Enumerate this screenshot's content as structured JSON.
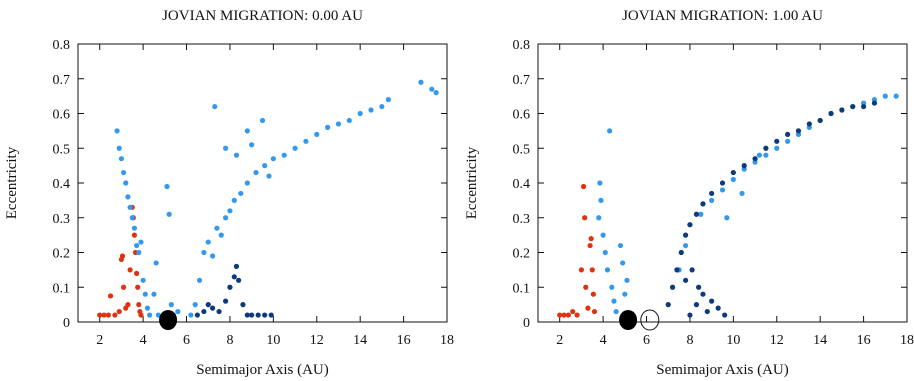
{
  "chart_data": [
    {
      "type": "scatter",
      "title": "JOVIAN MIGRATION: 0.00 AU",
      "xlabel": "Semimajor Axis (AU)",
      "ylabel": "Eccentricity",
      "xlim": [
        1,
        18
      ],
      "ylim": [
        0,
        0.8
      ],
      "xticks": [
        2,
        4,
        6,
        8,
        10,
        12,
        14,
        16,
        18
      ],
      "yticks": [
        0,
        0.1,
        0.2,
        0.3,
        0.4,
        0.5,
        0.6,
        0.7,
        0.8
      ],
      "grid": false,
      "colors": {
        "red": "#dd3311",
        "light": "#3399ee",
        "dark": "#0d3a7a",
        "planet": "#000000"
      },
      "series": [
        {
          "color": "red",
          "points": [
            [
              2.0,
              0.02
            ],
            [
              2.2,
              0.02
            ],
            [
              2.4,
              0.02
            ],
            [
              2.5,
              0.075
            ],
            [
              2.7,
              0.02
            ],
            [
              2.9,
              0.03
            ],
            [
              3.0,
              0.18
            ],
            [
              3.05,
              0.19
            ],
            [
              3.1,
              0.1
            ],
            [
              3.2,
              0.04
            ],
            [
              3.3,
              0.05
            ],
            [
              3.4,
              0.15
            ],
            [
              3.5,
              0.33
            ],
            [
              3.55,
              0.3
            ],
            [
              3.6,
              0.25
            ],
            [
              3.65,
              0.2
            ],
            [
              3.7,
              0.14
            ],
            [
              3.75,
              0.1
            ],
            [
              3.8,
              0.05
            ],
            [
              3.85,
              0.03
            ],
            [
              3.9,
              0.02
            ]
          ]
        },
        {
          "color": "light",
          "points": [
            [
              2.8,
              0.55
            ],
            [
              2.9,
              0.5
            ],
            [
              3.0,
              0.47
            ],
            [
              3.1,
              0.43
            ],
            [
              3.2,
              0.4
            ],
            [
              3.3,
              0.36
            ],
            [
              3.4,
              0.33
            ],
            [
              3.5,
              0.3
            ],
            [
              3.6,
              0.27
            ],
            [
              3.7,
              0.22
            ],
            [
              3.8,
              0.2
            ],
            [
              3.9,
              0.23
            ],
            [
              4.0,
              0.12
            ],
            [
              4.1,
              0.08
            ],
            [
              4.2,
              0.04
            ],
            [
              4.3,
              0.02
            ],
            [
              4.5,
              0.08
            ],
            [
              4.6,
              0.17
            ],
            [
              4.7,
              0.02
            ],
            [
              5.1,
              0.39
            ],
            [
              5.2,
              0.31
            ],
            [
              5.3,
              0.05
            ],
            [
              5.4,
              0.02
            ],
            [
              5.6,
              0.03
            ],
            [
              6.2,
              0.02
            ],
            [
              6.4,
              0.05
            ],
            [
              6.6,
              0.12
            ],
            [
              6.8,
              0.2
            ],
            [
              7.0,
              0.23
            ],
            [
              7.2,
              0.19
            ],
            [
              7.4,
              0.27
            ],
            [
              7.6,
              0.25
            ],
            [
              7.8,
              0.3
            ],
            [
              8.0,
              0.32
            ],
            [
              8.2,
              0.35
            ],
            [
              8.5,
              0.37
            ],
            [
              8.8,
              0.4
            ],
            [
              9.2,
              0.43
            ],
            [
              9.6,
              0.45
            ],
            [
              10.0,
              0.47
            ],
            [
              10.5,
              0.48
            ],
            [
              11.0,
              0.5
            ],
            [
              11.5,
              0.52
            ],
            [
              12.0,
              0.54
            ],
            [
              12.5,
              0.56
            ],
            [
              13.0,
              0.57
            ],
            [
              13.5,
              0.58
            ],
            [
              14.0,
              0.6
            ],
            [
              14.5,
              0.61
            ],
            [
              15.0,
              0.62
            ],
            [
              15.3,
              0.64
            ],
            [
              16.8,
              0.69
            ],
            [
              17.3,
              0.67
            ],
            [
              17.5,
              0.66
            ],
            [
              7.3,
              0.62
            ],
            [
              7.8,
              0.5
            ],
            [
              8.3,
              0.48
            ],
            [
              8.8,
              0.55
            ],
            [
              9.0,
              0.51
            ],
            [
              9.5,
              0.58
            ],
            [
              9.8,
              0.42
            ]
          ]
        },
        {
          "color": "dark",
          "points": [
            [
              6.5,
              0.02
            ],
            [
              6.8,
              0.03
            ],
            [
              7.0,
              0.05
            ],
            [
              7.2,
              0.04
            ],
            [
              7.5,
              0.03
            ],
            [
              7.8,
              0.06
            ],
            [
              8.0,
              0.1
            ],
            [
              8.2,
              0.13
            ],
            [
              8.3,
              0.16
            ],
            [
              8.4,
              0.12
            ],
            [
              8.6,
              0.05
            ],
            [
              8.8,
              0.02
            ],
            [
              9.0,
              0.02
            ],
            [
              9.3,
              0.02
            ],
            [
              9.6,
              0.02
            ],
            [
              9.9,
              0.02
            ]
          ]
        }
      ]
    },
    {
      "type": "scatter",
      "title": "JOVIAN MIGRATION: 1.00 AU",
      "xlabel": "Semimajor Axis (AU)",
      "ylabel": "Eccentricity",
      "xlim": [
        1,
        18
      ],
      "ylim": [
        0,
        0.8
      ],
      "xticks": [
        2,
        4,
        6,
        8,
        10,
        12,
        14,
        16,
        18
      ],
      "yticks": [
        0,
        0.1,
        0.2,
        0.3,
        0.4,
        0.5,
        0.6,
        0.7,
        0.8
      ],
      "grid": false,
      "colors": {
        "red": "#dd3311",
        "light": "#3399ee",
        "dark": "#0d3a7a",
        "planet": "#000000"
      },
      "series": [
        {
          "color": "red",
          "points": [
            [
              2.0,
              0.02
            ],
            [
              2.2,
              0.02
            ],
            [
              2.4,
              0.02
            ],
            [
              2.6,
              0.03
            ],
            [
              2.8,
              0.02
            ],
            [
              3.0,
              0.15
            ],
            [
              3.1,
              0.39
            ],
            [
              3.15,
              0.3
            ],
            [
              3.2,
              0.1
            ],
            [
              3.3,
              0.04
            ],
            [
              3.4,
              0.22
            ],
            [
              3.45,
              0.24
            ],
            [
              3.5,
              0.15
            ],
            [
              3.55,
              0.08
            ],
            [
              3.6,
              0.03
            ]
          ]
        },
        {
          "color": "light",
          "points": [
            [
              3.8,
              0.3
            ],
            [
              3.85,
              0.4
            ],
            [
              3.9,
              0.35
            ],
            [
              4.0,
              0.25
            ],
            [
              4.1,
              0.2
            ],
            [
              4.2,
              0.15
            ],
            [
              4.3,
              0.55
            ],
            [
              4.4,
              0.1
            ],
            [
              4.5,
              0.06
            ],
            [
              4.6,
              0.03
            ],
            [
              4.8,
              0.22
            ],
            [
              4.9,
              0.17
            ],
            [
              5.0,
              0.08
            ],
            [
              5.1,
              0.12
            ],
            [
              7.5,
              0.15
            ],
            [
              7.8,
              0.22
            ],
            [
              8.0,
              0.28
            ],
            [
              8.5,
              0.31
            ],
            [
              9.0,
              0.35
            ],
            [
              9.5,
              0.38
            ],
            [
              10.0,
              0.41
            ],
            [
              10.5,
              0.44
            ],
            [
              11.0,
              0.46
            ],
            [
              11.5,
              0.48
            ],
            [
              12.0,
              0.5
            ],
            [
              12.5,
              0.52
            ],
            [
              13.0,
              0.54
            ],
            [
              13.5,
              0.56
            ],
            [
              14.0,
              0.58
            ],
            [
              14.5,
              0.6
            ],
            [
              15.0,
              0.61
            ],
            [
              15.5,
              0.62
            ],
            [
              16.0,
              0.63
            ],
            [
              16.5,
              0.64
            ],
            [
              17.0,
              0.65
            ],
            [
              17.5,
              0.65
            ],
            [
              11.2,
              0.48
            ],
            [
              9.7,
              0.3
            ],
            [
              10.4,
              0.37
            ]
          ]
        },
        {
          "color": "dark",
          "points": [
            [
              7.0,
              0.05
            ],
            [
              7.2,
              0.1
            ],
            [
              7.4,
              0.15
            ],
            [
              7.6,
              0.2
            ],
            [
              7.8,
              0.25
            ],
            [
              8.0,
              0.28
            ],
            [
              8.3,
              0.31
            ],
            [
              8.6,
              0.34
            ],
            [
              9.0,
              0.37
            ],
            [
              9.5,
              0.4
            ],
            [
              10.0,
              0.43
            ],
            [
              10.5,
              0.45
            ],
            [
              11.0,
              0.47
            ],
            [
              11.5,
              0.5
            ],
            [
              12.0,
              0.52
            ],
            [
              12.5,
              0.54
            ],
            [
              13.0,
              0.55
            ],
            [
              13.5,
              0.57
            ],
            [
              14.0,
              0.58
            ],
            [
              14.5,
              0.6
            ],
            [
              15.0,
              0.61
            ],
            [
              15.5,
              0.62
            ],
            [
              16.0,
              0.62
            ],
            [
              16.5,
              0.63
            ],
            [
              8.0,
              0.02
            ],
            [
              8.3,
              0.05
            ],
            [
              8.6,
              0.08
            ],
            [
              9.0,
              0.06
            ],
            [
              9.3,
              0.04
            ],
            [
              9.6,
              0.02
            ],
            [
              7.8,
              0.12
            ],
            [
              8.1,
              0.15
            ],
            [
              8.4,
              0.1
            ],
            [
              8.8,
              0.03
            ]
          ]
        }
      ]
    }
  ]
}
